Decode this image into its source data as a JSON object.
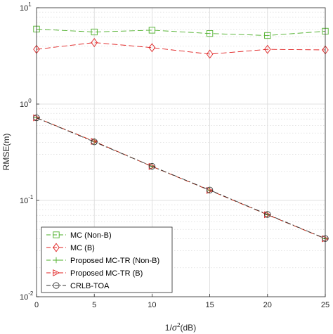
{
  "chart_data": {
    "type": "line",
    "title": "",
    "xlabel": {
      "prefix": "1/",
      "symbol": "σ",
      "exponent": "2",
      "suffix": "(dB)"
    },
    "ylabel": "RMSE(m)",
    "x": [
      0,
      5,
      10,
      15,
      20,
      25
    ],
    "xlim": [
      0,
      25
    ],
    "ylim": [
      0.01,
      10
    ],
    "yscale": "log",
    "grid": true,
    "legend_position": "bottom-left",
    "x_ticks": [
      "0",
      "5",
      "10",
      "15",
      "20",
      "25"
    ],
    "y_ticks": [
      {
        "value": 0.01,
        "base": "10",
        "exp": "-2"
      },
      {
        "value": 0.1,
        "base": "10",
        "exp": "-1"
      },
      {
        "value": 1,
        "base": "10",
        "exp": "0"
      },
      {
        "value": 10,
        "base": "10",
        "exp": "1"
      }
    ],
    "series": [
      {
        "name": "MC (Non-B)",
        "color": "#4caf28",
        "dash": "8,4",
        "marker": "square",
        "values": [
          6.0,
          5.6,
          5.85,
          5.4,
          5.15,
          5.7
        ]
      },
      {
        "name": "MC (B)",
        "color": "#e02020",
        "dash": "8,4",
        "marker": "diamond",
        "values": [
          3.7,
          4.35,
          3.85,
          3.3,
          3.7,
          3.65
        ]
      },
      {
        "name": "Proposed MC-TR (Non-B)",
        "color": "#4caf28",
        "dash": "8,4",
        "marker": "plus",
        "values": [
          0.72,
          0.41,
          0.225,
          0.127,
          0.071,
          0.04
        ]
      },
      {
        "name": "Proposed MC-TR (B)",
        "color": "#e02020",
        "dash": "8,4",
        "marker": "triangle-right",
        "values": [
          0.72,
          0.41,
          0.225,
          0.127,
          0.071,
          0.04
        ]
      },
      {
        "name": "CRLB-TOA",
        "color": "#333333",
        "dash": "8,3,2,3",
        "marker": "circle",
        "values": [
          0.72,
          0.405,
          0.226,
          0.128,
          0.0715,
          0.0402
        ]
      }
    ]
  }
}
